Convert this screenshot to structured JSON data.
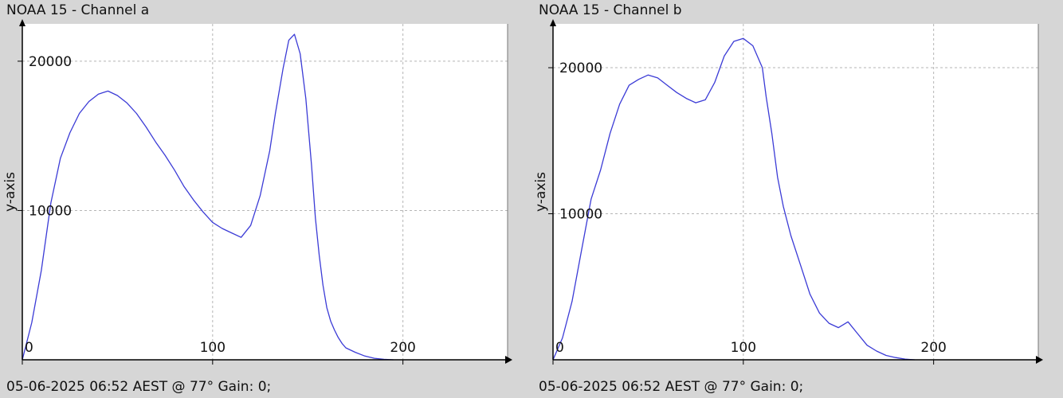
{
  "chart_data": [
    {
      "type": "line",
      "title": "NOAA 15 - Channel a",
      "xlabel": "",
      "ylabel": "y-axis",
      "footer": "05-06-2025 06:52 AEST @ 77° Gain: 0;",
      "xlim": [
        0,
        255
      ],
      "ylim": [
        0,
        22500
      ],
      "xticks": [
        0,
        100,
        200
      ],
      "yticks": [
        10000,
        20000
      ],
      "grid": true,
      "line_color": "#3b3bd6",
      "series": [
        {
          "x": [
            0,
            5,
            10,
            15,
            20,
            25,
            30,
            35,
            40,
            45,
            50,
            55,
            60,
            65,
            70,
            75,
            80,
            85,
            90,
            95,
            100,
            105,
            110,
            115,
            120,
            125,
            130,
            133,
            137,
            140,
            143,
            146,
            149,
            152,
            154,
            156,
            158,
            160,
            162,
            164,
            166,
            168,
            170,
            175,
            180,
            185,
            190,
            195
          ],
          "y": [
            0,
            2500,
            6000,
            10500,
            13500,
            15200,
            16500,
            17300,
            17800,
            18000,
            17700,
            17200,
            16500,
            15600,
            14600,
            13700,
            12700,
            11600,
            10700,
            9900,
            9200,
            8800,
            8500,
            8200,
            9000,
            11000,
            14000,
            16500,
            19500,
            21400,
            21800,
            20500,
            17500,
            13000,
            9500,
            7000,
            5000,
            3500,
            2600,
            2000,
            1500,
            1100,
            800,
            500,
            250,
            100,
            30,
            0
          ]
        }
      ]
    },
    {
      "type": "line",
      "title": "NOAA 15 - Channel b",
      "xlabel": "",
      "ylabel": "y-axis",
      "footer": "05-06-2025 06:52 AEST @ 77° Gain: 0;",
      "xlim": [
        0,
        255
      ],
      "ylim": [
        0,
        23000
      ],
      "xticks": [
        0,
        100,
        200
      ],
      "yticks": [
        10000,
        20000
      ],
      "grid": true,
      "line_color": "#3b3bd6",
      "series": [
        {
          "x": [
            0,
            5,
            10,
            15,
            20,
            25,
            30,
            35,
            40,
            45,
            50,
            55,
            60,
            65,
            70,
            75,
            80,
            85,
            90,
            95,
            100,
            105,
            110,
            112,
            115,
            118,
            121,
            125,
            130,
            135,
            140,
            145,
            150,
            155,
            160,
            165,
            170,
            175,
            180,
            185,
            190
          ],
          "y": [
            0,
            1500,
            4000,
            7500,
            11000,
            13000,
            15500,
            17500,
            18800,
            19200,
            19500,
            19300,
            18800,
            18300,
            17900,
            17600,
            17800,
            19000,
            20800,
            21800,
            22000,
            21500,
            20000,
            18000,
            15500,
            12500,
            10500,
            8500,
            6500,
            4500,
            3200,
            2500,
            2200,
            2600,
            1800,
            1000,
            600,
            300,
            150,
            50,
            0
          ]
        }
      ]
    }
  ]
}
